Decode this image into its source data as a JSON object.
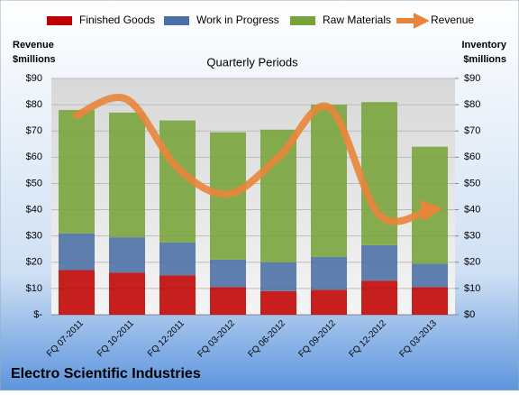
{
  "chart_data": {
    "type": "bar-line",
    "title": "Electro Scientific Industries",
    "subtitle": "Quarterly Periods",
    "y_label": "Revenue\n$millions",
    "y2_label": "Inventory\n$millions",
    "categories": [
      "FQ 07-2011",
      "FQ 10-2011",
      "FQ 12-2011",
      "FQ 03-2012",
      "FQ 06-2012",
      "FQ 09-2012",
      "FQ 12-2012",
      "FQ 03-2013"
    ],
    "series": [
      {
        "name": "Finished Goods",
        "color": "#c00000",
        "kind": "bar",
        "axis": "y2",
        "values": [
          17,
          16,
          15,
          10.5,
          9,
          9.5,
          13,
          10.5
        ]
      },
      {
        "name": "Work in Progress",
        "color": "#4a6fa5",
        "kind": "bar",
        "axis": "y2",
        "values": [
          14,
          13.5,
          12.5,
          10.5,
          11,
          12.5,
          13.5,
          9
        ]
      },
      {
        "name": "Raw Materials",
        "color": "#77a33a",
        "kind": "bar",
        "axis": "y2",
        "values": [
          47,
          47.5,
          46.5,
          48.5,
          50.5,
          58,
          54.5,
          44.5
        ]
      },
      {
        "name": "Revenue",
        "color": "#e8853a",
        "kind": "line",
        "axis": "y",
        "values": [
          76,
          82,
          56,
          46,
          60,
          79,
          38,
          40
        ]
      }
    ],
    "ylim": [
      0,
      90
    ],
    "yticks": [
      {
        "value": 0,
        "label": "$-"
      },
      {
        "value": 10,
        "label": "$10"
      },
      {
        "value": 20,
        "label": "$20"
      },
      {
        "value": 30,
        "label": "$30"
      },
      {
        "value": 40,
        "label": "$40"
      },
      {
        "value": 50,
        "label": "$50"
      },
      {
        "value": 60,
        "label": "$60"
      },
      {
        "value": 70,
        "label": "$70"
      },
      {
        "value": 80,
        "label": "$80"
      },
      {
        "value": 90,
        "label": "$90"
      }
    ],
    "y2lim": [
      0,
      90
    ],
    "y2ticks": [
      {
        "value": 0,
        "label": "$0"
      },
      {
        "value": 10,
        "label": "$10"
      },
      {
        "value": 20,
        "label": "$20"
      },
      {
        "value": 30,
        "label": "$30"
      },
      {
        "value": 40,
        "label": "$40"
      },
      {
        "value": 50,
        "label": "$50"
      },
      {
        "value": 60,
        "label": "$60"
      },
      {
        "value": 70,
        "label": "$70"
      },
      {
        "value": 80,
        "label": "$80"
      },
      {
        "value": 90,
        "label": "$90"
      }
    ],
    "grid": true,
    "legend": "top"
  }
}
